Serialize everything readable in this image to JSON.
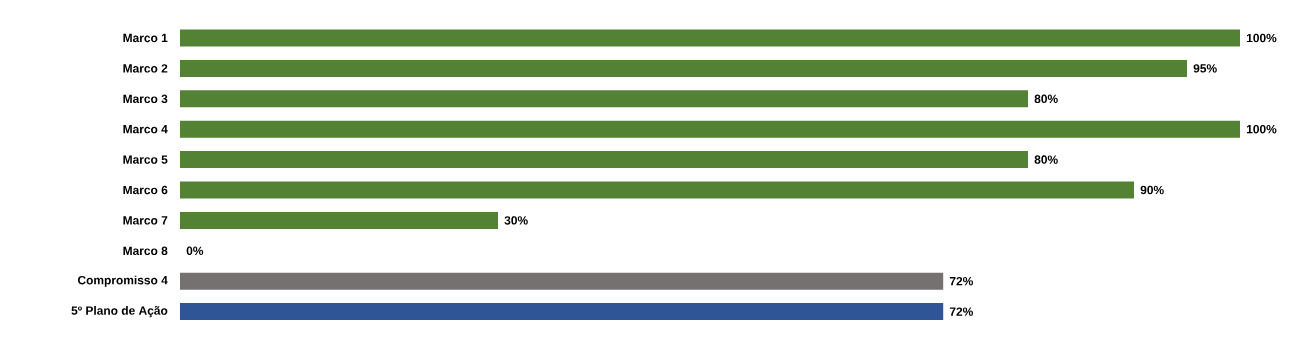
{
  "chart_data": {
    "type": "bar",
    "orientation": "horizontal",
    "categories": [
      "Marco 1",
      "Marco 2",
      "Marco 3",
      "Marco 4",
      "Marco 5",
      "Marco 6",
      "Marco 7",
      "Marco 8",
      "Compromisso 4",
      "5º Plano de Ação"
    ],
    "values": [
      100,
      95,
      80,
      100,
      80,
      90,
      30,
      0,
      72,
      72
    ],
    "colors": [
      "#548235",
      "#548235",
      "#548235",
      "#548235",
      "#548235",
      "#548235",
      "#548235",
      "#548235",
      "#767171",
      "#2f5597"
    ],
    "value_labels": [
      "100%",
      "95%",
      "80%",
      "100%",
      "80%",
      "90%",
      "30%",
      "0%",
      "72%",
      "72%"
    ],
    "xlim": [
      0,
      100
    ]
  }
}
